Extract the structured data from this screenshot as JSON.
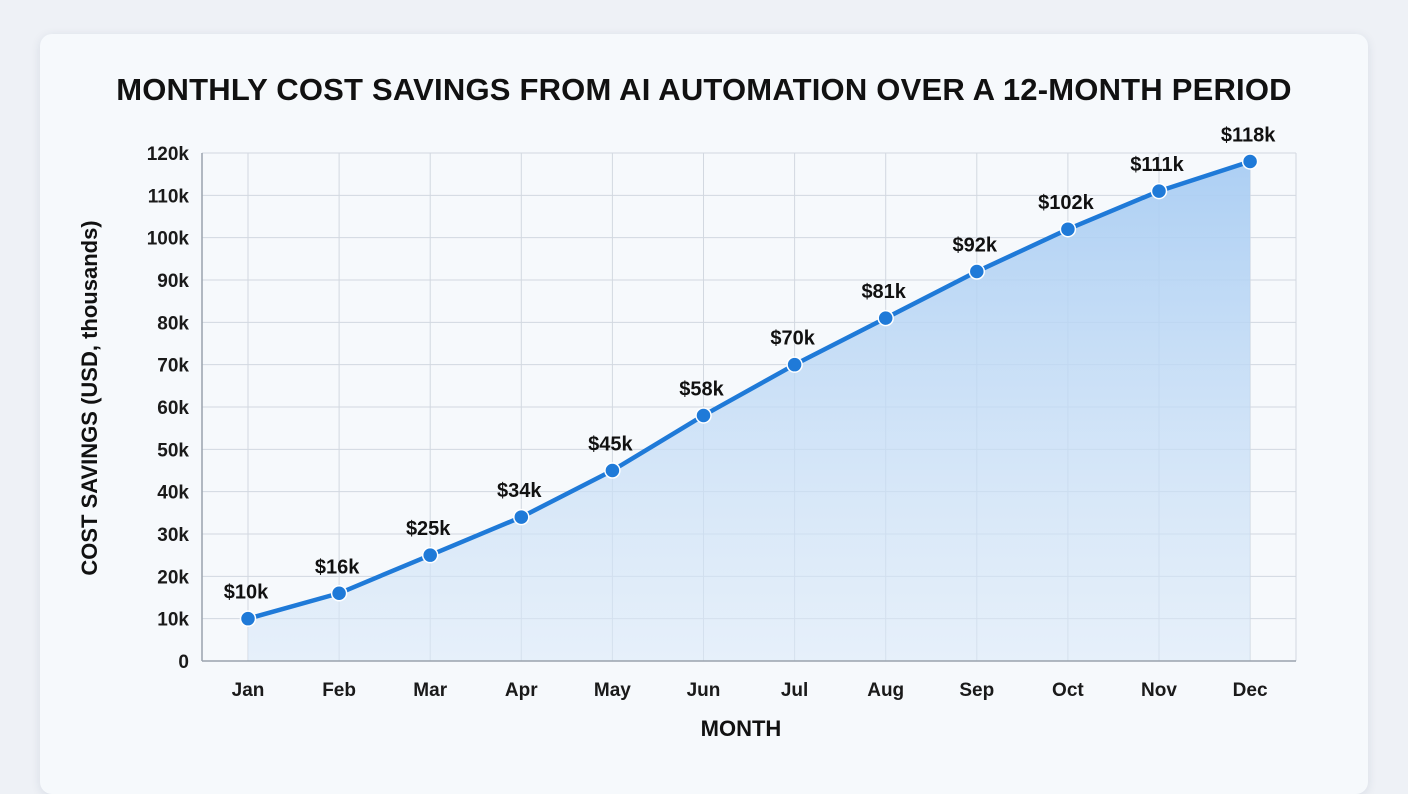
{
  "chart_data": {
    "type": "area",
    "title": "MONTHLY COST SAVINGS FROM AI AUTOMATION OVER A 12-MONTH PERIOD",
    "xlabel": "MONTH",
    "ylabel": "COST SAVINGS (USD, thousands)",
    "categories": [
      "Jan",
      "Feb",
      "Mar",
      "Apr",
      "May",
      "Jun",
      "Jul",
      "Aug",
      "Sep",
      "Oct",
      "Nov",
      "Dec"
    ],
    "values": [
      10,
      16,
      25,
      34,
      45,
      58,
      70,
      81,
      92,
      102,
      111,
      118
    ],
    "data_labels": [
      "$10k",
      "$16k",
      "$25k",
      "$34k",
      "$45k",
      "$58k",
      "$70k",
      "$81k",
      "$92k",
      "$102k",
      "$111k",
      "$118k"
    ],
    "y_ticks": [
      0,
      10,
      20,
      30,
      40,
      50,
      60,
      70,
      80,
      90,
      100,
      110,
      120
    ],
    "y_tick_labels": [
      "0",
      "10k",
      "20k",
      "30k",
      "40k",
      "50k",
      "60k",
      "70k",
      "80k",
      "90k",
      "100k",
      "110k",
      "120k"
    ],
    "ylim": [
      0,
      120
    ],
    "grid": true,
    "legend": "none",
    "colors": {
      "line": "#1f7ad8",
      "fill": "#a9cdf3",
      "grid": "#d2d8e0",
      "axis": "#9aa3ad"
    }
  }
}
